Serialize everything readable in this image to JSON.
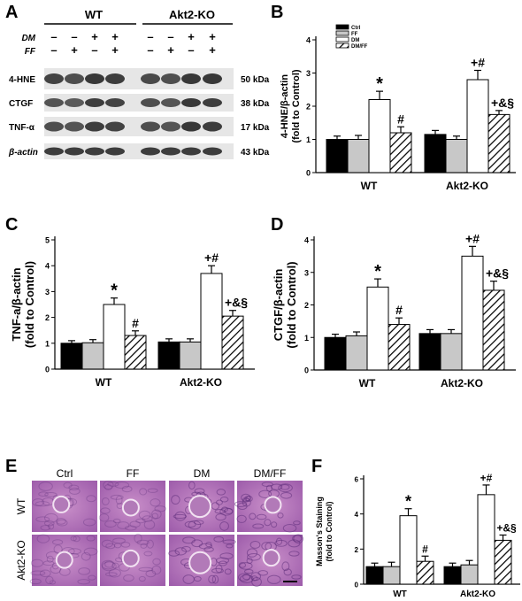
{
  "panels": {
    "A": "A",
    "B": "B",
    "C": "C",
    "D": "D",
    "E": "E",
    "F": "F"
  },
  "blot": {
    "groups": [
      "WT",
      "Akt2-KO"
    ],
    "treatment_labels": [
      "DM",
      "FF"
    ],
    "dm_signs": [
      "–",
      "–",
      "+",
      "+",
      "–",
      "–",
      "+",
      "+"
    ],
    "ff_signs": [
      "–",
      "+",
      "–",
      "+",
      "–",
      "+",
      "–",
      "+"
    ],
    "rows": [
      {
        "protein": "4-HNE",
        "kda": "50 kDa"
      },
      {
        "protein": "CTGF",
        "kda": "38 kDa"
      },
      {
        "protein": "TNF-α",
        "kda": "17 kDa"
      },
      {
        "protein": "β-actin",
        "kda": "43 kDa"
      }
    ]
  },
  "micro": {
    "columns": [
      "Ctrl",
      "FF",
      "DM",
      "DM/FF"
    ],
    "rows": [
      "WT",
      "Akt2-KO"
    ]
  },
  "legend": [
    "Ctrl",
    "FF",
    "DM",
    "DM/FF"
  ],
  "chart_data": [
    {
      "id": "B",
      "type": "bar",
      "categories": [
        "WT",
        "Akt2-KO"
      ],
      "ylabel": "4-HNE/β-actin\n(fold to Control)",
      "ylim": [
        0,
        4
      ],
      "yticks": [
        0,
        1,
        2,
        3,
        4
      ],
      "series": [
        {
          "name": "Ctrl",
          "values": [
            1.0,
            1.15
          ],
          "errors": [
            0.1,
            0.12
          ],
          "marks": [
            "",
            ""
          ]
        },
        {
          "name": "FF",
          "values": [
            1.0,
            1.0
          ],
          "errors": [
            0.12,
            0.1
          ],
          "marks": [
            "",
            ""
          ]
        },
        {
          "name": "DM",
          "values": [
            2.2,
            2.8
          ],
          "errors": [
            0.25,
            0.28
          ],
          "marks": [
            "*",
            "+#"
          ]
        },
        {
          "name": "DM/FF",
          "values": [
            1.2,
            1.75
          ],
          "errors": [
            0.18,
            0.12
          ],
          "marks": [
            "#",
            "+&§"
          ]
        }
      ]
    },
    {
      "id": "C",
      "type": "bar",
      "categories": [
        "WT",
        "Akt2-KO"
      ],
      "ylabel": "TNF-a/β-actin\n(fold to Control)",
      "ylim": [
        0,
        5
      ],
      "yticks": [
        0,
        1,
        2,
        3,
        4,
        5
      ],
      "series": [
        {
          "name": "Ctrl",
          "values": [
            1.0,
            1.05
          ],
          "errors": [
            0.1,
            0.12
          ],
          "marks": [
            "",
            ""
          ]
        },
        {
          "name": "FF",
          "values": [
            1.02,
            1.05
          ],
          "errors": [
            0.12,
            0.12
          ],
          "marks": [
            "",
            ""
          ]
        },
        {
          "name": "DM",
          "values": [
            2.5,
            3.7
          ],
          "errors": [
            0.25,
            0.3
          ],
          "marks": [
            "*",
            "+#"
          ]
        },
        {
          "name": "DM/FF",
          "values": [
            1.3,
            2.05
          ],
          "errors": [
            0.18,
            0.22
          ],
          "marks": [
            "#",
            "+&§"
          ]
        }
      ]
    },
    {
      "id": "D",
      "type": "bar",
      "categories": [
        "WT",
        "Akt2-KO"
      ],
      "ylabel": "CTGF/β-actin\n(fold to Control)",
      "ylim": [
        0,
        4
      ],
      "yticks": [
        0,
        1,
        2,
        3,
        4
      ],
      "series": [
        {
          "name": "Ctrl",
          "values": [
            1.0,
            1.12
          ],
          "errors": [
            0.1,
            0.12
          ],
          "marks": [
            "",
            ""
          ]
        },
        {
          "name": "FF",
          "values": [
            1.05,
            1.12
          ],
          "errors": [
            0.12,
            0.12
          ],
          "marks": [
            "",
            ""
          ]
        },
        {
          "name": "DM",
          "values": [
            2.55,
            3.5
          ],
          "errors": [
            0.25,
            0.3
          ],
          "marks": [
            "*",
            "+#"
          ]
        },
        {
          "name": "DM/FF",
          "values": [
            1.4,
            2.45
          ],
          "errors": [
            0.2,
            0.28
          ],
          "marks": [
            "#",
            "+&§"
          ]
        }
      ]
    },
    {
      "id": "F",
      "type": "bar",
      "categories": [
        "WT",
        "Akt2-KO"
      ],
      "ylabel": "Masson's Staining\n(fold to Control)",
      "ylim": [
        0,
        6
      ],
      "yticks": [
        0,
        2,
        4,
        6
      ],
      "series": [
        {
          "name": "Ctrl",
          "values": [
            1.0,
            1.0
          ],
          "errors": [
            0.2,
            0.2
          ],
          "marks": [
            "",
            ""
          ]
        },
        {
          "name": "FF",
          "values": [
            1.0,
            1.1
          ],
          "errors": [
            0.25,
            0.25
          ],
          "marks": [
            "",
            ""
          ]
        },
        {
          "name": "DM",
          "values": [
            3.9,
            5.1
          ],
          "errors": [
            0.4,
            0.55
          ],
          "marks": [
            "*",
            "+#"
          ]
        },
        {
          "name": "DM/FF",
          "values": [
            1.3,
            2.5
          ],
          "errors": [
            0.3,
            0.3
          ],
          "marks": [
            "#",
            "+&§"
          ]
        }
      ]
    }
  ]
}
